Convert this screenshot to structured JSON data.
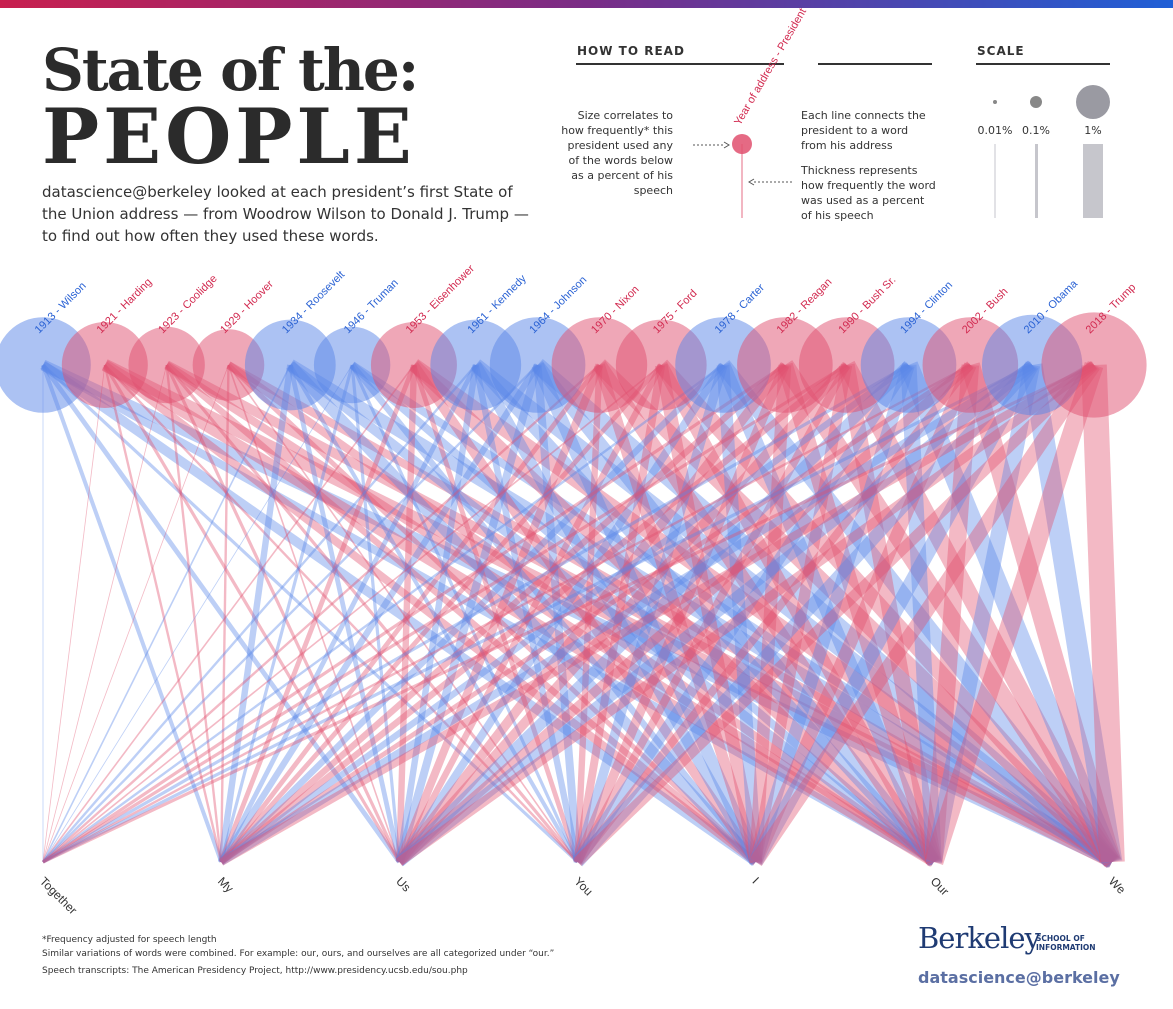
{
  "header": {
    "title_line1": "State of the:",
    "title_line2": "PEOPLE",
    "intro": "datascience@berkeley looked at each president’s first State of the Union address — from Woodrow Wilson to Donald J. Trump — to find out how often they used these words."
  },
  "how_to_read": {
    "heading": "HOW TO READ",
    "size_text": "Size correlates to how frequently* this president used any of the words below as a percent of his speech",
    "label_example": "Year of address - President",
    "line_text": "Each line connects the president to a word from his address",
    "thickness_text": "Thickness represents how frequently the word was used as a percent of his speech"
  },
  "scale": {
    "heading": "SCALE",
    "labels": [
      "0.01%",
      "0.1%",
      "1%"
    ]
  },
  "colors": {
    "democrat": "#5a86e8",
    "republican": "#e0506f",
    "dem_label": "#2a62d4",
    "rep_label": "#d22a50",
    "gray": "#c6c6cc"
  },
  "chart_data": {
    "type": "network",
    "title": "State of the: PEOPLE",
    "presidents": [
      {
        "label": "1913 - Wilson",
        "party": "D",
        "size": 1.2
      },
      {
        "label": "1921 - Harding",
        "party": "R",
        "size": 1.0
      },
      {
        "label": "1923 - Coolidge",
        "party": "R",
        "size": 0.8
      },
      {
        "label": "1929 - Hoover",
        "party": "R",
        "size": 0.7
      },
      {
        "label": "1934 - Roosevelt",
        "party": "D",
        "size": 1.1
      },
      {
        "label": "1946 - Truman",
        "party": "D",
        "size": 0.8
      },
      {
        "label": "1953 - Eisenhower",
        "party": "R",
        "size": 1.0
      },
      {
        "label": "1961 - Kennedy",
        "party": "D",
        "size": 1.1
      },
      {
        "label": "1964 - Johnson",
        "party": "D",
        "size": 1.2
      },
      {
        "label": "1970 - Nixon",
        "party": "R",
        "size": 1.2
      },
      {
        "label": "1975 - Ford",
        "party": "R",
        "size": 1.1
      },
      {
        "label": "1978 - Carter",
        "party": "D",
        "size": 1.2
      },
      {
        "label": "1982 - Reagan",
        "party": "R",
        "size": 1.2
      },
      {
        "label": "1990 - Bush Sr.",
        "party": "R",
        "size": 1.2
      },
      {
        "label": "1994 - Clinton",
        "party": "D",
        "size": 1.2
      },
      {
        "label": "2002 - Bush",
        "party": "R",
        "size": 1.2
      },
      {
        "label": "2010 - Obama",
        "party": "D",
        "size": 1.3
      },
      {
        "label": "2018 - Trump",
        "party": "R",
        "size": 1.4
      }
    ],
    "words": [
      "Together",
      "My",
      "Us",
      "You",
      "I",
      "Our",
      "We"
    ],
    "weights": [
      [
        0.05,
        0.25,
        0.3,
        0.2,
        0.6,
        0.5,
        0.7
      ],
      [
        0.05,
        0.15,
        0.2,
        0.15,
        0.5,
        0.7,
        0.8
      ],
      [
        0.05,
        0.15,
        0.2,
        0.2,
        0.4,
        0.5,
        0.6
      ],
      [
        0.05,
        0.15,
        0.1,
        0.1,
        0.3,
        0.5,
        0.5
      ],
      [
        0.1,
        0.4,
        0.3,
        0.25,
        0.7,
        0.6,
        0.8
      ],
      [
        0.05,
        0.2,
        0.2,
        0.2,
        0.4,
        0.5,
        0.5
      ],
      [
        0.1,
        0.3,
        0.4,
        0.3,
        0.6,
        0.8,
        0.9
      ],
      [
        0.15,
        0.3,
        0.4,
        0.4,
        0.7,
        0.7,
        0.9
      ],
      [
        0.15,
        0.4,
        0.5,
        0.5,
        0.8,
        0.8,
        1.0
      ],
      [
        0.15,
        0.3,
        0.5,
        0.4,
        0.7,
        0.9,
        1.0
      ],
      [
        0.1,
        0.3,
        0.4,
        0.5,
        0.8,
        0.8,
        1.0
      ],
      [
        0.15,
        0.4,
        0.5,
        0.6,
        0.8,
        0.9,
        1.0
      ],
      [
        0.2,
        0.4,
        0.6,
        0.6,
        0.8,
        1.0,
        1.1
      ],
      [
        0.2,
        0.4,
        0.6,
        0.5,
        0.7,
        1.0,
        1.1
      ],
      [
        0.2,
        0.4,
        0.7,
        0.7,
        0.8,
        1.0,
        1.2
      ],
      [
        0.15,
        0.3,
        0.6,
        0.5,
        0.8,
        1.1,
        1.2
      ],
      [
        0.2,
        0.5,
        0.7,
        0.8,
        0.9,
        1.0,
        1.3
      ],
      [
        0.2,
        0.5,
        0.6,
        0.7,
        0.9,
        1.2,
        1.6
      ]
    ]
  },
  "footnotes": [
    "*Frequency adjusted for speech length",
    "Similar variations of words were combined. For example: our, ours, and ourselves are all categorized under “our.”",
    "Speech transcripts: The American Presidency Project, http://www.presidency.ucsb.edu/sou.php"
  ],
  "logo": {
    "name": "Berkeley",
    "school": "SCHOOL OF INFORMATION",
    "tagline": "datascience@berkeley"
  }
}
